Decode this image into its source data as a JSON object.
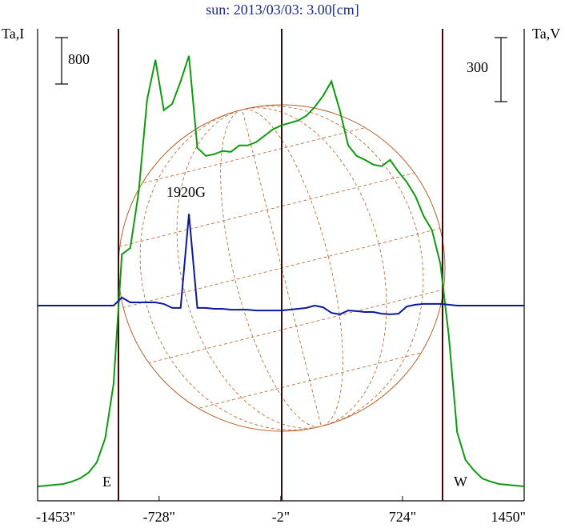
{
  "chart_data": {
    "type": "line",
    "title": "sun: 2013/03/03: 3.00[cm]",
    "y_label": "Ta,I",
    "y2_label": "Ta,V",
    "i_scale": 800,
    "v_scale": 300,
    "annotations": [
      "E",
      "W",
      "1920G"
    ],
    "xlim": [
      -1453,
      1450
    ],
    "xticks": [
      {
        "value": -1453,
        "label": "-1453\""
      },
      {
        "value": -728,
        "label": "-728\""
      },
      {
        "value": -2,
        "label": "-2\""
      },
      {
        "value": 724,
        "label": "724\""
      },
      {
        "value": 1450,
        "label": "1450\""
      }
    ],
    "x": [
      -1450,
      -1400,
      -1350,
      -1300,
      -1250,
      -1200,
      -1150,
      -1100,
      -1050,
      -1000,
      -950,
      -900,
      -850,
      -800,
      -750,
      -700,
      -650,
      -600,
      -550,
      -500,
      -450,
      -400,
      -350,
      -300,
      -250,
      -200,
      -150,
      -100,
      -50,
      0,
      50,
      100,
      150,
      200,
      250,
      300,
      350,
      400,
      450,
      500,
      550,
      600,
      650,
      700,
      750,
      800,
      850,
      900,
      950,
      1000,
      1050,
      1100,
      1150,
      1200,
      1250,
      1300,
      1350,
      1400,
      1450
    ],
    "series": [
      {
        "color": "#109a10",
        "axis": "y",
        "values": [
          0,
          14,
          28,
          41,
          83,
          138,
          235,
          414,
          828,
          1766,
          4002,
          4112,
          5078,
          6665,
          7355,
          6486,
          6596,
          6983,
          7424,
          5837,
          5699,
          5727,
          5782,
          5768,
          5879,
          5879,
          5934,
          6044,
          6155,
          6224,
          6265,
          6307,
          6389,
          6541,
          6734,
          6983,
          6486,
          5879,
          5699,
          5630,
          5548,
          5520,
          5630,
          5423,
          5244,
          5009,
          4664,
          4416,
          3836,
          2594,
          938,
          455,
          276,
          138,
          83,
          41,
          28,
          14,
          0
        ]
      },
      {
        "color": "#0a1a9a",
        "axis": "y2",
        "values": [
          0,
          0,
          0,
          0,
          0,
          0,
          0,
          0,
          0,
          0,
          38,
          15,
          15,
          15,
          15,
          8,
          -11,
          -11,
          430,
          -11,
          -11,
          -15,
          -15,
          -19,
          -19,
          -19,
          -23,
          -23,
          -23,
          -23,
          -19,
          -15,
          -11,
          0,
          -8,
          -34,
          -41,
          -23,
          -26,
          -30,
          -30,
          -38,
          -41,
          -38,
          -4,
          4,
          8,
          8,
          8,
          4,
          0,
          0,
          0,
          0,
          0,
          0,
          0,
          0,
          0
        ]
      }
    ]
  }
}
